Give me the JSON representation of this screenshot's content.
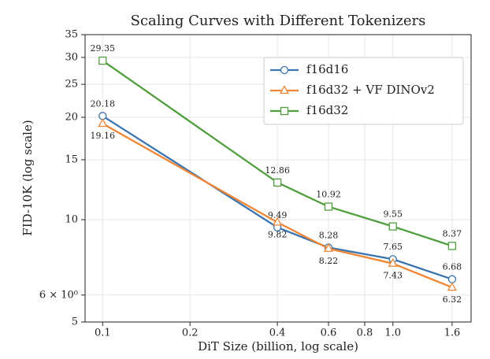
{
  "chart_data": {
    "type": "line",
    "title": "Scaling Curves with Different Tokenizers",
    "x_label": "DiT Size (billion, log scale)",
    "y_label": "FID-10K (log scale)",
    "x": [
      0.1,
      0.4,
      0.6,
      1.0,
      1.6
    ],
    "series": [
      {
        "name": "f16d16",
        "color": "#3b75af",
        "marker": "circle",
        "values": [
          20.18,
          9.49,
          8.28,
          7.65,
          6.68
        ]
      },
      {
        "name": "f16d32 + VF DINOv2",
        "color": "#ef8636",
        "marker": "triangle",
        "values": [
          19.16,
          9.82,
          8.22,
          7.43,
          6.32
        ]
      },
      {
        "name": "f16d32",
        "color": "#519e3e",
        "marker": "square",
        "values": [
          29.35,
          12.86,
          10.92,
          9.55,
          8.37
        ]
      }
    ],
    "xscale": "log",
    "yscale": "log",
    "xlim": [
      0.087,
      1.86
    ],
    "xticks": [
      0.1,
      0.2,
      0.4,
      0.6,
      0.8,
      {
        "value": 1,
        "label": "1.0"
      },
      1.6
    ],
    "ylim": [
      5,
      35
    ],
    "yticks": [
      5,
      {
        "value": 6,
        "label": "6 × 10⁰"
      },
      10,
      15,
      20,
      25,
      30,
      35
    ],
    "grid": true,
    "legend": "upper right"
  }
}
